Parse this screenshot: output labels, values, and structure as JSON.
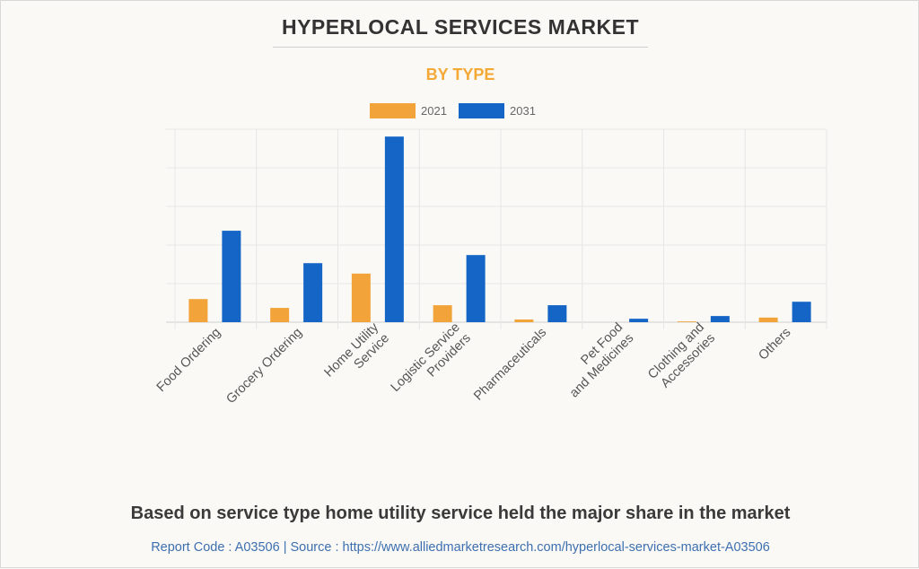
{
  "title": "HYPERLOCAL SERVICES MARKET",
  "subtitle": "BY TYPE",
  "footer": "Based on service type home utility service held the major share in the market",
  "source": "Report Code : A03506  |  Source : https://www.alliedmarketresearch.com/hyperlocal-services-market-A03506",
  "chart_data": {
    "type": "bar",
    "title": "HYPERLOCAL SERVICES MARKET",
    "subtitle": "BY TYPE",
    "xlabel": "",
    "ylabel": "",
    "ylim": [
      0,
      5
    ],
    "y_units": "gridline intervals (no y-axis labels shown)",
    "grid": true,
    "legend_position": "top-center",
    "categories": [
      [
        "Food Ordering"
      ],
      [
        "Grocery Ordering"
      ],
      [
        "Home Utility",
        "Service"
      ],
      [
        "Logistic Service",
        "Providers"
      ],
      [
        "Pharmaceuticals"
      ],
      [
        "Pet Food",
        "and Medicines"
      ],
      [
        "Clothing and",
        "Accessories"
      ],
      [
        "Others"
      ]
    ],
    "series": [
      {
        "name": "2021",
        "color": "#f2a43a",
        "values": [
          0.6,
          0.37,
          1.26,
          0.44,
          0.07,
          0.0,
          0.02,
          0.12
        ]
      },
      {
        "name": "2031",
        "color": "#1565c7",
        "values": [
          2.37,
          1.53,
          4.81,
          1.74,
          0.44,
          0.09,
          0.16,
          0.53
        ]
      }
    ]
  }
}
